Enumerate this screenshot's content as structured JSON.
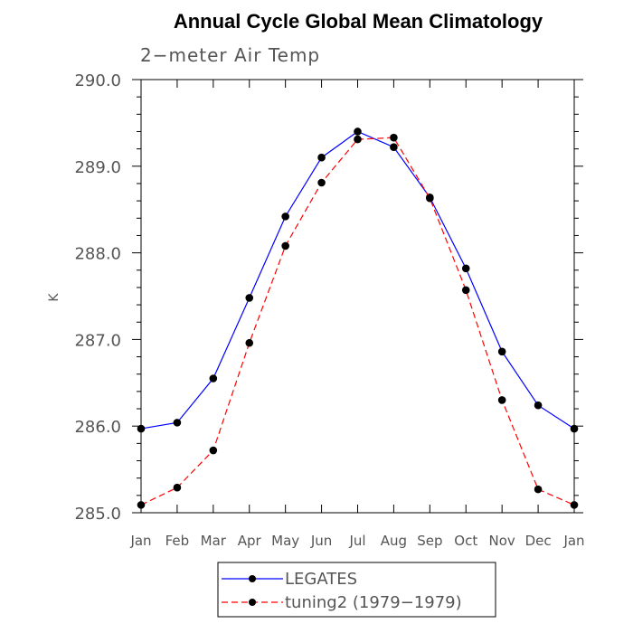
{
  "chart_data": {
    "type": "line",
    "title": "Annual Cycle Global Mean Climatology",
    "subtitle": "2−meter Air Temp",
    "xlabel": "",
    "ylabel": "K",
    "categories": [
      "Jan",
      "Feb",
      "Mar",
      "Apr",
      "May",
      "Jun",
      "Jul",
      "Aug",
      "Sep",
      "Oct",
      "Nov",
      "Dec",
      "Jan"
    ],
    "ylim": [
      285.0,
      290.0
    ],
    "yticks": [
      "285.0",
      "286.0",
      "287.0",
      "288.0",
      "289.0",
      "290.0"
    ],
    "grid": false,
    "legend_position": "bottom-center",
    "series": [
      {
        "name": "LEGATES",
        "color": "#0000ff",
        "style": "solid",
        "values": [
          285.97,
          286.04,
          286.55,
          287.48,
          288.42,
          289.1,
          289.4,
          289.22,
          288.64,
          287.82,
          286.86,
          286.24,
          285.97
        ]
      },
      {
        "name": "tuning2 (1979−1979)",
        "color": "#ff0000",
        "style": "dashed",
        "values": [
          285.09,
          285.29,
          285.72,
          286.96,
          288.08,
          288.81,
          289.31,
          289.33,
          288.63,
          287.57,
          286.3,
          285.27,
          285.09
        ]
      }
    ]
  }
}
